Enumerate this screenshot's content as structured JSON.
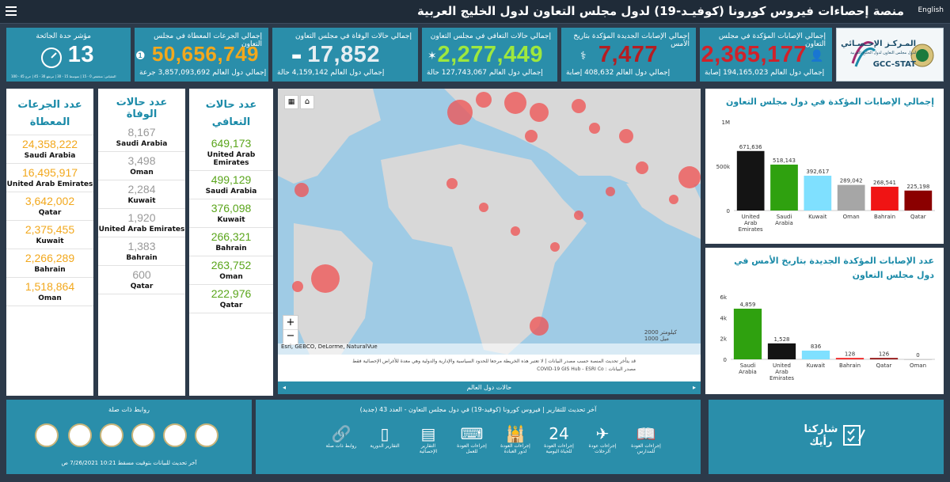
{
  "header": {
    "title": "منصة إحصاءات فيروس كورونا (كوفيـد-19) لدول مجلس التعاون لدول الخليج العربية",
    "lang_link": "English"
  },
  "logo": {
    "org_ar": "المـركـز الإحـصـائي",
    "org_sub": "لدول مجلس التعاون لدول الخليج العربية",
    "org_en": "GCC-STAT"
  },
  "kpis": {
    "confirmed": {
      "label": "إجمالي الإصابات المؤكدة في مجلس التعاون",
      "value": "2,365,177",
      "sub": "إجمالي دول العالم 194,165,023 إصابة",
      "color": "#d0222a"
    },
    "new": {
      "label": "إجمالي الإصابات الجديدة المؤكدة بتاريخ الأمس",
      "value": "7,477",
      "sub": "إجمالي دول العالم 408,632 إصابة",
      "color": "#b51d22"
    },
    "recovered": {
      "label": "إجمالي حالات التعافي في مجلس التعاون",
      "value": "2,277,449",
      "sub": "إجمالي دول العالم 127,743,067 حالة",
      "color": "#9ee83e"
    },
    "deaths": {
      "label": "إجمالي حالات الوفاة في مجلس التعاون",
      "value": "17,852",
      "sub": "إجمالي دول العالم 4,159,142 حالة",
      "color": "#e6eef2"
    },
    "vaccines": {
      "label": "إجمالي الجرعات المعطاة في مجلس التعاون",
      "value": "50,656,749",
      "sub": "إجمالي دول العالم 3,857,093,692 جرعة",
      "color": "#f2a81d"
    },
    "severity": {
      "label": "مؤشر حدة الجائحة",
      "value": "13",
      "sub": "المقياس: منخفض 0 - 15 | متوسط 15 - 30 | مرتفع 30 - 45 | حرج 45 - 100",
      "color": "#ffffff"
    }
  },
  "lists": {
    "vaccines": {
      "title": "عدد الجرعات المعطاة",
      "items": [
        {
          "value": "24,358,222",
          "country": "Saudi Arabia"
        },
        {
          "value": "16,495,917",
          "country": "United Arab Emirates"
        },
        {
          "value": "3,642,002",
          "country": "Qatar"
        },
        {
          "value": "2,375,455",
          "country": "Kuwait"
        },
        {
          "value": "2,266,289",
          "country": "Bahrain"
        },
        {
          "value": "1,518,864",
          "country": "Oman"
        }
      ]
    },
    "deaths": {
      "title": "عدد حالات الوفاة",
      "items": [
        {
          "value": "8,167",
          "country": "Saudi Arabia"
        },
        {
          "value": "3,498",
          "country": "Oman"
        },
        {
          "value": "2,284",
          "country": "Kuwait"
        },
        {
          "value": "1,920",
          "country": "United Arab Emirates"
        },
        {
          "value": "1,383",
          "country": "Bahrain"
        },
        {
          "value": "600",
          "country": "Qatar"
        }
      ]
    },
    "recovered": {
      "title": "عدد حالات التعافي",
      "items": [
        {
          "value": "649,173",
          "country": "United Arab Emirates"
        },
        {
          "value": "499,129",
          "country": "Saudi Arabia"
        },
        {
          "value": "376,098",
          "country": "Kuwait"
        },
        {
          "value": "266,321",
          "country": "Bahrain"
        },
        {
          "value": "263,752",
          "country": "Oman"
        },
        {
          "value": "222,976",
          "country": "Qatar"
        }
      ]
    }
  },
  "map": {
    "attribution": "Esri, GEBCO, DeLorme, NaturalVue",
    "disclaimer": "قد يتأخر تحديث المنصة حسب مصدر البيانات | لا تعتبر هذه الخريطة مرجعا للحدود السياسية والإدارية والدولية وهي معدة للأغراض الإحصائية فقط",
    "source": "مصدر البيانات : COVID-19 GIS Hub - ESRI Co",
    "scale": "2000 كيلومتر",
    "scale2": "1000 ميل",
    "footer_label": "حالات دول العالم",
    "zoom_in": "+",
    "zoom_out": "−"
  },
  "chart_data": [
    {
      "type": "bar",
      "title": "إجمالي الإصابات المؤكدة في دول مجلس التعاون",
      "categories": [
        "United Arab Emirates",
        "Saudi Arabia",
        "Kuwait",
        "Oman",
        "Bahrain",
        "Qatar"
      ],
      "values": [
        671636,
        518143,
        392617,
        289042,
        268541,
        225198
      ],
      "value_labels": [
        "671,636",
        "518,143",
        "392,617",
        "289,042",
        "268,541",
        "225,198"
      ],
      "colors": [
        "#141414",
        "#2fa10f",
        "#7fe0ff",
        "#a6a6a6",
        "#f01414",
        "#8b0000"
      ],
      "ylim": [
        0,
        1000000
      ],
      "yticks": [
        "0",
        "500k",
        "1M"
      ],
      "grid": false
    },
    {
      "type": "bar",
      "title": "عدد الإصابات المؤكدة الجديدة بتاريخ الأمس في دول مجلس التعاون",
      "categories": [
        "Saudi Arabia",
        "United Arab Emirates",
        "Kuwait",
        "Bahrain",
        "Qatar",
        "Oman"
      ],
      "values": [
        4859,
        1528,
        836,
        128,
        126,
        0
      ],
      "value_labels": [
        "4,859",
        "1,528",
        "836",
        "128",
        "126",
        "0"
      ],
      "colors": [
        "#2fa10f",
        "#141414",
        "#7fe0ff",
        "#f01414",
        "#8b0000",
        "#a6a6a6"
      ],
      "ylim": [
        0,
        6000
      ],
      "yticks": [
        "0",
        "2k",
        "4k",
        "6k"
      ],
      "grid": false
    }
  ],
  "footer": {
    "links_title": "روابط ذات صلة",
    "last_update": "آخر تحديث للبيانات بتوقيت مسقط 10:21 7/26/2021 ص",
    "report_title": "آخر تحديث للتقارير | فيروس كورونا (كوفيد-19) في دول مجلس التعاون - العدد 43 (جديد)",
    "icons": [
      {
        "name": "links-icon",
        "caption": "روابط ذات صلة",
        "glyph": "🔗"
      },
      {
        "name": "reports-icon",
        "caption": "التقارير الدورية",
        "glyph": "▯"
      },
      {
        "name": "stats-reports-icon",
        "caption": "التقارير الإحصائية",
        "glyph": "▤"
      },
      {
        "name": "work-return-icon",
        "caption": "إجراءات العودة للعمل",
        "glyph": "⌨"
      },
      {
        "name": "worship-return-icon",
        "caption": "إجراءات العودة لدور العبادة",
        "glyph": "🕌"
      },
      {
        "name": "daily-life-icon",
        "caption": "إجراءات العودة للحياة اليومية",
        "glyph": "24"
      },
      {
        "name": "flights-icon",
        "caption": "إجراءات عودة الرحلات",
        "glyph": "✈"
      },
      {
        "name": "schools-icon",
        "caption": "إجراءات العودة للمدارس",
        "glyph": "📖"
      }
    ],
    "share_label": "شاركنا رأيك"
  }
}
